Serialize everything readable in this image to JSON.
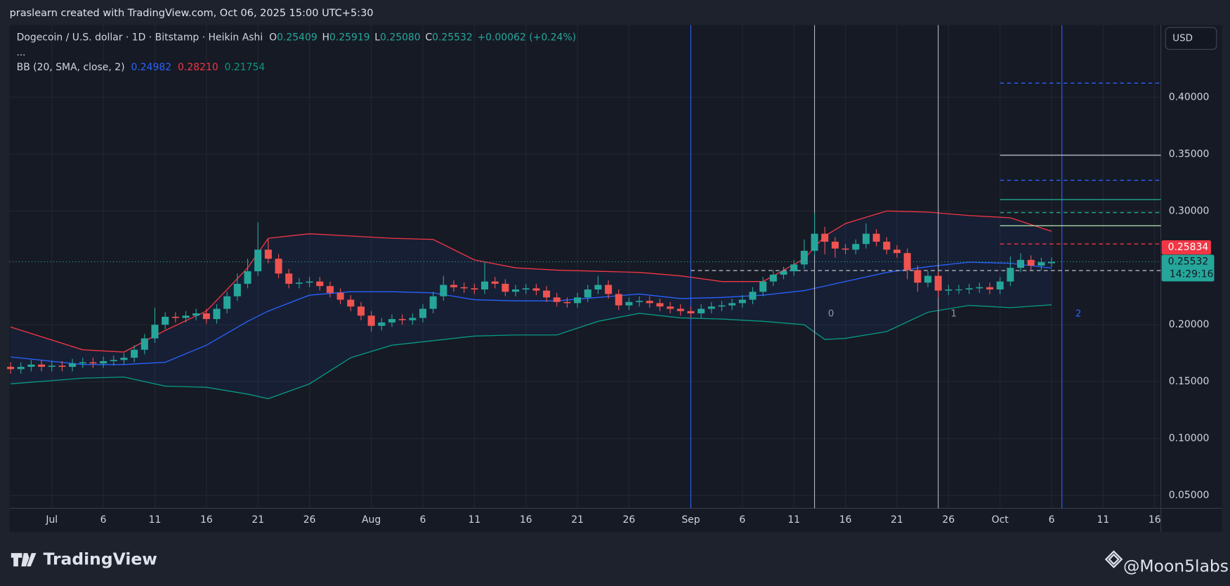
{
  "header": {
    "attribution": "praslearn created with TradingView.com, Oct 06, 2025 15:00 UTC+5:30",
    "currency": "USD"
  },
  "footer": {
    "brand": "TradingView",
    "author": "@Moon5labs"
  },
  "chart_data": {
    "type": "candlestick",
    "title": "Dogecoin / U.S. dollar · 1D · Bitstamp · Heikin Ashi",
    "ohlc_legend": [
      {
        "label": "O",
        "value": "0.25409"
      },
      {
        "label": "H",
        "value": "0.25919"
      },
      {
        "label": "L",
        "value": "0.25080"
      },
      {
        "label": "C",
        "value": "0.25532"
      }
    ],
    "change": "+0.00062 (+0.24%)",
    "more": "...",
    "up_color": "#26a69a",
    "down_color": "#ef5350",
    "x": [
      -3,
      -2,
      -1,
      0,
      1,
      2,
      3,
      4,
      5,
      6,
      7,
      8,
      9,
      10,
      11,
      12,
      13,
      14,
      15,
      16,
      17,
      18,
      19,
      20,
      21,
      22,
      23,
      24,
      25,
      26,
      27,
      28,
      29,
      30,
      31,
      32,
      33,
      34,
      35,
      36,
      37,
      38,
      39,
      40,
      41,
      42,
      43,
      44,
      45,
      46,
      47,
      48,
      49,
      50,
      51,
      52,
      53,
      54,
      55,
      56,
      57,
      58,
      59,
      60,
      61,
      62,
      63,
      64,
      65,
      66,
      67,
      68,
      69,
      70,
      71,
      72,
      73,
      74,
      75,
      76,
      77,
      78,
      79,
      80,
      81,
      82,
      83,
      84,
      85,
      86,
      87,
      88,
      89,
      90,
      91,
      92,
      93,
      94,
      95,
      96,
      97,
      98
    ],
    "open": [
      0.163,
      0.161,
      0.163,
      0.165,
      0.163,
      0.164,
      0.163,
      0.166,
      0.167,
      0.166,
      0.168,
      0.169,
      0.171,
      0.178,
      0.188,
      0.2,
      0.207,
      0.206,
      0.208,
      0.21,
      0.205,
      0.214,
      0.225,
      0.236,
      0.247,
      0.266,
      0.258,
      0.245,
      0.236,
      0.237,
      0.238,
      0.234,
      0.228,
      0.222,
      0.216,
      0.208,
      0.199,
      0.202,
      0.205,
      0.204,
      0.206,
      0.214,
      0.225,
      0.235,
      0.233,
      0.232,
      0.231,
      0.238,
      0.236,
      0.229,
      0.231,
      0.232,
      0.23,
      0.224,
      0.22,
      0.219,
      0.224,
      0.231,
      0.235,
      0.227,
      0.217,
      0.22,
      0.221,
      0.219,
      0.216,
      0.214,
      0.212,
      0.21,
      0.214,
      0.216,
      0.217,
      0.219,
      0.222,
      0.229,
      0.238,
      0.244,
      0.247,
      0.253,
      0.265,
      0.28,
      0.273,
      0.267,
      0.266,
      0.271,
      0.28,
      0.273,
      0.266,
      0.263,
      0.248,
      0.237,
      0.243,
      0.23,
      0.231,
      0.231,
      0.232,
      0.233,
      0.231,
      0.238,
      0.25,
      0.257,
      0.252,
      0.25409
    ],
    "high": [
      0.167,
      0.167,
      0.169,
      0.169,
      0.168,
      0.168,
      0.17,
      0.171,
      0.171,
      0.172,
      0.173,
      0.175,
      0.182,
      0.192,
      0.215,
      0.211,
      0.211,
      0.212,
      0.214,
      0.214,
      0.218,
      0.229,
      0.245,
      0.258,
      0.29,
      0.275,
      0.262,
      0.249,
      0.241,
      0.242,
      0.242,
      0.238,
      0.232,
      0.226,
      0.22,
      0.212,
      0.206,
      0.209,
      0.209,
      0.21,
      0.218,
      0.229,
      0.243,
      0.239,
      0.237,
      0.236,
      0.255,
      0.242,
      0.24,
      0.235,
      0.236,
      0.236,
      0.234,
      0.228,
      0.224,
      0.228,
      0.235,
      0.243,
      0.239,
      0.231,
      0.224,
      0.225,
      0.225,
      0.223,
      0.22,
      0.218,
      0.216,
      0.218,
      0.22,
      0.221,
      0.223,
      0.226,
      0.233,
      0.242,
      0.248,
      0.251,
      0.257,
      0.275,
      0.298,
      0.286,
      0.277,
      0.271,
      0.275,
      0.289,
      0.284,
      0.277,
      0.27,
      0.267,
      0.252,
      0.247,
      0.247,
      0.235,
      0.235,
      0.236,
      0.237,
      0.237,
      0.242,
      0.26,
      0.263,
      0.261,
      0.259,
      0.25919
    ],
    "low": [
      0.157,
      0.157,
      0.159,
      0.159,
      0.159,
      0.159,
      0.159,
      0.162,
      0.162,
      0.162,
      0.164,
      0.165,
      0.167,
      0.174,
      0.184,
      0.196,
      0.202,
      0.202,
      0.204,
      0.201,
      0.201,
      0.21,
      0.221,
      0.232,
      0.243,
      0.254,
      0.241,
      0.232,
      0.232,
      0.233,
      0.23,
      0.224,
      0.218,
      0.212,
      0.204,
      0.194,
      0.195,
      0.198,
      0.2,
      0.2,
      0.202,
      0.21,
      0.221,
      0.229,
      0.228,
      0.227,
      0.227,
      0.232,
      0.225,
      0.225,
      0.227,
      0.226,
      0.22,
      0.216,
      0.215,
      0.215,
      0.22,
      0.227,
      0.223,
      0.213,
      0.213,
      0.216,
      0.215,
      0.212,
      0.21,
      0.208,
      0.206,
      0.206,
      0.21,
      0.212,
      0.213,
      0.215,
      0.218,
      0.225,
      0.234,
      0.24,
      0.243,
      0.249,
      0.261,
      0.262,
      0.259,
      0.262,
      0.262,
      0.267,
      0.269,
      0.262,
      0.259,
      0.24,
      0.229,
      0.233,
      0.224,
      0.226,
      0.227,
      0.227,
      0.228,
      0.227,
      0.227,
      0.234,
      0.246,
      0.248,
      0.248,
      0.2508
    ],
    "close": [
      0.161,
      0.163,
      0.165,
      0.163,
      0.164,
      0.163,
      0.166,
      0.167,
      0.166,
      0.168,
      0.169,
      0.171,
      0.178,
      0.188,
      0.2,
      0.207,
      0.206,
      0.208,
      0.21,
      0.205,
      0.214,
      0.225,
      0.236,
      0.247,
      0.266,
      0.258,
      0.245,
      0.236,
      0.237,
      0.238,
      0.234,
      0.228,
      0.222,
      0.216,
      0.208,
      0.199,
      0.202,
      0.205,
      0.204,
      0.206,
      0.214,
      0.225,
      0.235,
      0.233,
      0.232,
      0.231,
      0.238,
      0.236,
      0.229,
      0.231,
      0.232,
      0.23,
      0.224,
      0.22,
      0.219,
      0.224,
      0.231,
      0.235,
      0.227,
      0.217,
      0.22,
      0.221,
      0.219,
      0.216,
      0.214,
      0.212,
      0.21,
      0.214,
      0.216,
      0.217,
      0.219,
      0.222,
      0.229,
      0.238,
      0.244,
      0.247,
      0.253,
      0.265,
      0.28,
      0.273,
      0.267,
      0.266,
      0.271,
      0.28,
      0.273,
      0.266,
      0.263,
      0.248,
      0.237,
      0.243,
      0.23,
      0.231,
      0.231,
      0.232,
      0.233,
      0.231,
      0.238,
      0.25,
      0.257,
      0.252,
      0.255,
      0.25532
    ],
    "indicator": {
      "name": "BB (20, SMA, close, 2)",
      "fill": "#2962ff",
      "x": [
        -3,
        4,
        8,
        12,
        16,
        20,
        22,
        26,
        30,
        34,
        38,
        42,
        46,
        50,
        54,
        58,
        62,
        66,
        70,
        74,
        76,
        78,
        82,
        86,
        90,
        94,
        98
      ],
      "series": [
        {
          "color": "#2962ff",
          "legend_value": "0.24982",
          "values": [
            0.1717,
            0.165,
            0.165,
            0.167,
            0.182,
            0.203,
            0.212,
            0.226,
            0.229,
            0.229,
            0.228,
            0.222,
            0.221,
            0.221,
            0.224,
            0.227,
            0.223,
            0.224,
            0.226,
            0.23,
            0.234,
            0.238,
            0.246,
            0.251,
            0.255,
            0.254,
            0.24982
          ]
        },
        {
          "color": "#f23645",
          "legend_value": "0.28210",
          "values": [
            0.198,
            0.178,
            0.176,
            0.195,
            0.212,
            0.25,
            0.276,
            0.28,
            0.278,
            0.276,
            0.275,
            0.257,
            0.25,
            0.248,
            0.247,
            0.246,
            0.243,
            0.238,
            0.238,
            0.258,
            0.278,
            0.289,
            0.3,
            0.299,
            0.296,
            0.294,
            0.2821
          ]
        },
        {
          "color": "#089981",
          "legend_value": "0.21754",
          "values": [
            0.148,
            0.153,
            0.154,
            0.146,
            0.145,
            0.139,
            0.135,
            0.148,
            0.171,
            0.182,
            0.186,
            0.19,
            0.191,
            0.191,
            0.203,
            0.21,
            0.206,
            0.205,
            0.203,
            0.2,
            0.187,
            0.188,
            0.194,
            0.211,
            0.217,
            0.215,
            0.21754
          ]
        }
      ]
    },
    "last_price": 0.25532,
    "countdown": "14:29:16",
    "marker_price": 0.25834,
    "levels": [
      {
        "value": 0.4124,
        "from": 93,
        "color": "#2962ff",
        "dash": true
      },
      {
        "value": 0.349,
        "from": 93,
        "color": "#b2b5be",
        "dash": false
      },
      {
        "value": 0.327,
        "from": 93,
        "color": "#2962ff",
        "dash": true
      },
      {
        "value": 0.31,
        "from": 93,
        "color": "#22ab94",
        "dash": false
      },
      {
        "value": 0.2986,
        "from": 93,
        "color": "#22ab94",
        "dash": true
      },
      {
        "value": 0.287,
        "from": 93,
        "color": "#a5d6a7",
        "dash": false
      },
      {
        "value": 0.271,
        "from": 93,
        "color": "#f23645",
        "dash": true
      },
      {
        "value": 0.2476,
        "from": 63,
        "color": "#b2b5be",
        "dash": true
      }
    ],
    "vlines": [
      {
        "x": 63,
        "color": "#2962ff"
      },
      {
        "x": 75,
        "color": "#b2b5be"
      },
      {
        "x": 87,
        "color": "#b2b5be"
      },
      {
        "x": 99,
        "color": "#2962ff"
      }
    ],
    "cycle_labels": [
      {
        "x": 76.6,
        "y": 0.2097,
        "text": "0",
        "color": "#9598a1"
      },
      {
        "x": 88.5,
        "y": 0.2097,
        "text": "1",
        "color": "#9598a1"
      },
      {
        "x": 100.6,
        "y": 0.2097,
        "text": "2",
        "color": "#2962ff"
      }
    ],
    "xlim": [
      -3.1,
      108.6
    ],
    "xticks": [
      {
        "value": 1,
        "label": "Jul"
      },
      {
        "value": 6,
        "label": "6"
      },
      {
        "value": 11,
        "label": "11"
      },
      {
        "value": 16,
        "label": "16"
      },
      {
        "value": 21,
        "label": "21"
      },
      {
        "value": 26,
        "label": "26"
      },
      {
        "value": 32,
        "label": "Aug"
      },
      {
        "value": 37,
        "label": "6"
      },
      {
        "value": 42,
        "label": "11"
      },
      {
        "value": 47,
        "label": "16"
      },
      {
        "value": 52,
        "label": "21"
      },
      {
        "value": 57,
        "label": "26"
      },
      {
        "value": 63,
        "label": "Sep"
      },
      {
        "value": 68,
        "label": "6"
      },
      {
        "value": 73,
        "label": "11"
      },
      {
        "value": 78,
        "label": "16"
      },
      {
        "value": 83,
        "label": "21"
      },
      {
        "value": 88,
        "label": "26"
      },
      {
        "value": 93,
        "label": "Oct"
      },
      {
        "value": 98,
        "label": "6"
      },
      {
        "value": 103,
        "label": "11"
      },
      {
        "value": 108,
        "label": "16"
      }
    ],
    "ylim": [
      0.0386,
      0.4634
    ],
    "yticks": [
      {
        "value": 0.05,
        "label": "0.05000"
      },
      {
        "value": 0.1,
        "label": "0.10000"
      },
      {
        "value": 0.15,
        "label": "0.15000"
      },
      {
        "value": 0.2,
        "label": "0.20000"
      },
      {
        "value": 0.3,
        "label": "0.30000"
      },
      {
        "value": 0.35,
        "label": "0.35000"
      },
      {
        "value": 0.4,
        "label": "0.40000"
      }
    ],
    "grid": true
  }
}
